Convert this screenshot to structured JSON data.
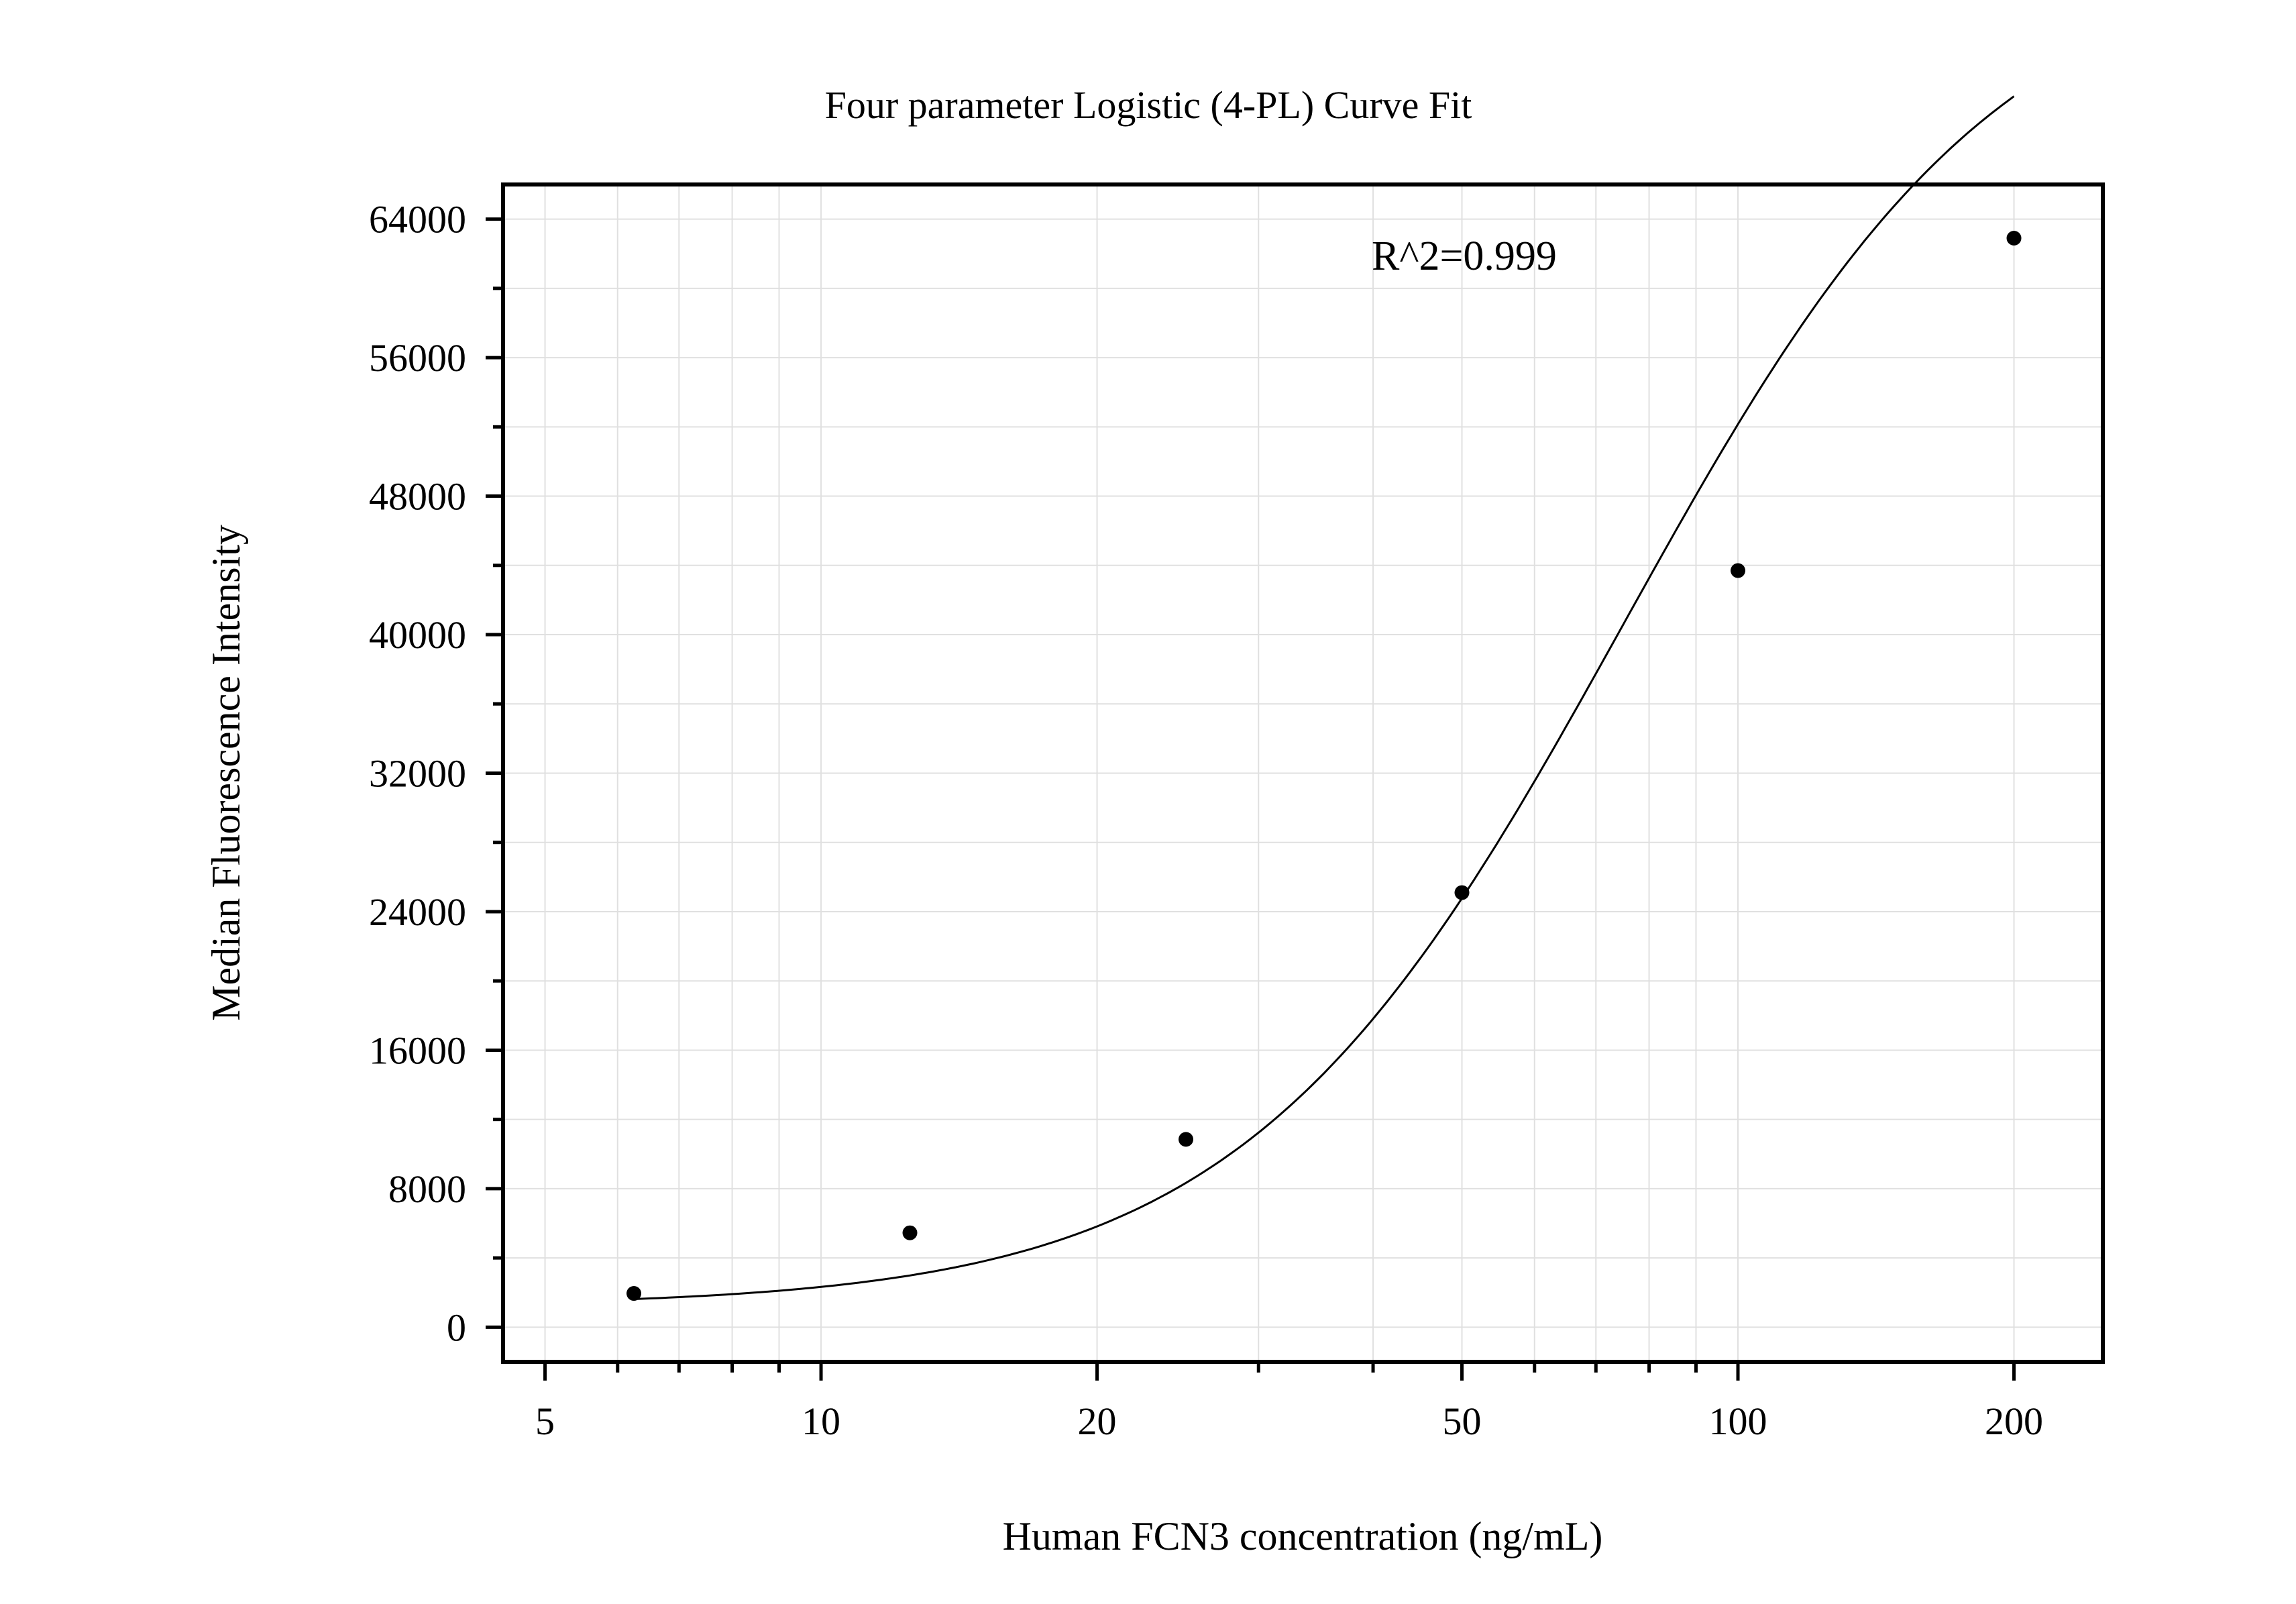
{
  "chart_data": {
    "type": "scatter",
    "title": "Four parameter Logistic (4-PL) Curve Fit",
    "xlabel": "Human FCN3 concentration (ng/mL)",
    "ylabel": "Median Fluorescence Intensity",
    "annotation": "R^2=0.999",
    "x_scale": "log",
    "xlim": [
      4.5,
      250
    ],
    "ylim": [
      -2000,
      66000
    ],
    "x_ticks": [
      5,
      10,
      20,
      50,
      100,
      200
    ],
    "x_tick_labels": [
      "5",
      "10",
      "20",
      "50",
      "100",
      "200"
    ],
    "y_ticks": [
      0,
      8000,
      16000,
      24000,
      32000,
      40000,
      48000,
      56000,
      64000
    ],
    "y_tick_labels": [
      "0",
      "8000",
      "16000",
      "24000",
      "32000",
      "40000",
      "48000",
      "56000",
      "64000"
    ],
    "grid": true,
    "series": [
      {
        "kind": "points",
        "x": [
          6.25,
          12.5,
          25,
          50,
          100,
          200
        ],
        "y": [
          1950,
          5450,
          10850,
          25100,
          43700,
          62900
        ]
      },
      {
        "kind": "fit-curve",
        "model": "4PL",
        "params": {
          "A": 1200,
          "B": 2.1,
          "C": 75,
          "D": 80000
        }
      }
    ],
    "colors": {
      "axis": "#000000",
      "grid": "#e0e0e0",
      "points": "#000000",
      "curve": "#000000"
    }
  }
}
